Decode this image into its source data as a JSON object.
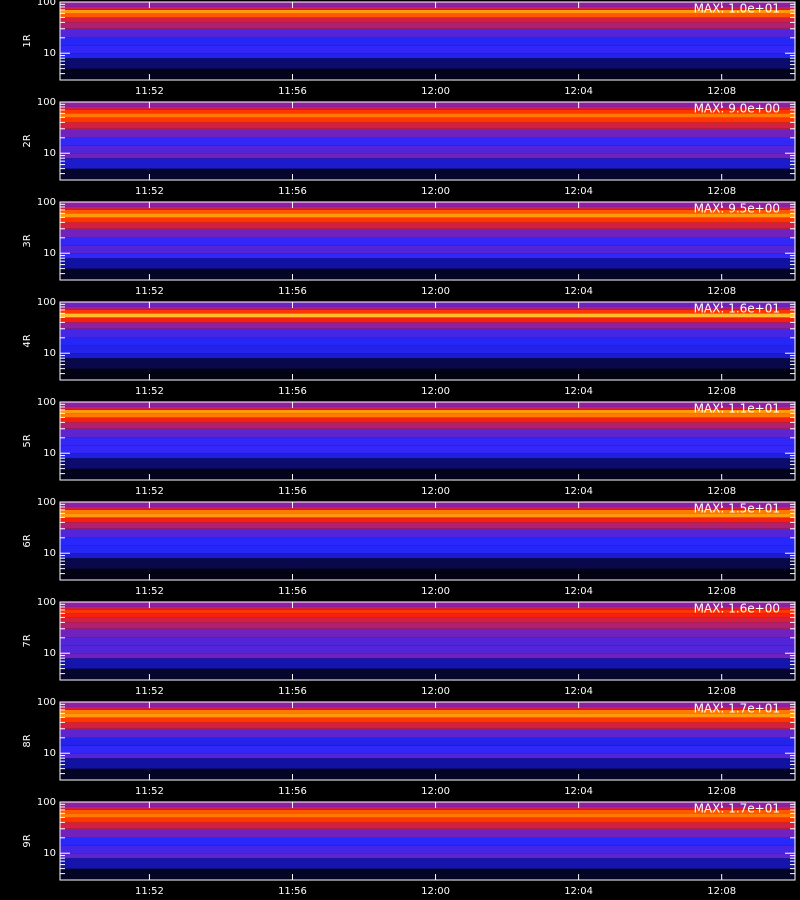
{
  "chart_data": [
    {
      "type": "heatmap",
      "y_label": "1R",
      "annotation": "MAX: 1.0e+01",
      "log_y": true,
      "xlim": [
        709.5,
        730.05
      ],
      "xticks": [
        {
          "value": 712,
          "label": "11:52"
        },
        {
          "value": 716,
          "label": "11:56"
        },
        {
          "value": 720,
          "label": "12:00"
        },
        {
          "value": 724,
          "label": "12:04"
        },
        {
          "value": 728,
          "label": "12:08"
        }
      ],
      "ylim": [
        3,
        100
      ],
      "yticks": [
        10,
        100
      ],
      "yminor_ticks": [
        4,
        5,
        6,
        7,
        8,
        9,
        20,
        30,
        40,
        50,
        60,
        70,
        80,
        90
      ],
      "band_edges": [
        3,
        5,
        8,
        10,
        14,
        20,
        30,
        40,
        50,
        60,
        70,
        80,
        100
      ],
      "values": [
        0.03,
        0.12,
        0.3,
        0.35,
        0.32,
        0.4,
        0.55,
        0.6,
        0.75,
        0.85,
        0.6,
        0.5
      ],
      "colormap": [
        "#000000",
        "#10109a",
        "#2828ff",
        "#9020a0",
        "#ff2000",
        "#ff9000",
        "#ffff70"
      ]
    },
    {
      "type": "heatmap",
      "y_label": "2R",
      "annotation": "MAX: 9.0e+00",
      "log_y": true,
      "xlim": [
        709.5,
        730.05
      ],
      "xticks": [
        {
          "value": 712,
          "label": "11:52"
        },
        {
          "value": 716,
          "label": "11:56"
        },
        {
          "value": 720,
          "label": "12:00"
        },
        {
          "value": 724,
          "label": "12:04"
        },
        {
          "value": 728,
          "label": "12:08"
        }
      ],
      "ylim": [
        3,
        100
      ],
      "yticks": [
        10,
        100
      ],
      "yminor_ticks": [
        4,
        5,
        6,
        7,
        8,
        9,
        20,
        30,
        40,
        50,
        60,
        70,
        80,
        90
      ],
      "band_edges": [
        3,
        5,
        8,
        10,
        14,
        20,
        30,
        40,
        50,
        60,
        70,
        80,
        100
      ],
      "values": [
        0.05,
        0.25,
        0.45,
        0.4,
        0.35,
        0.45,
        0.6,
        0.7,
        0.8,
        0.7,
        0.6,
        0.5
      ],
      "colormap": [
        "#000000",
        "#10109a",
        "#2828ff",
        "#9020a0",
        "#ff2000",
        "#ff9000",
        "#ffff70"
      ]
    },
    {
      "type": "heatmap",
      "y_label": "3R",
      "annotation": "MAX: 9.5e+00",
      "log_y": true,
      "xlim": [
        709.5,
        730.05
      ],
      "xticks": [
        {
          "value": 712,
          "label": "11:52"
        },
        {
          "value": 716,
          "label": "11:56"
        },
        {
          "value": 720,
          "label": "12:00"
        },
        {
          "value": 724,
          "label": "12:04"
        },
        {
          "value": 728,
          "label": "12:08"
        }
      ],
      "ylim": [
        3,
        100
      ],
      "yticks": [
        10,
        100
      ],
      "yminor_ticks": [
        4,
        5,
        6,
        7,
        8,
        9,
        20,
        30,
        40,
        50,
        60,
        70,
        80,
        90
      ],
      "band_edges": [
        3,
        5,
        8,
        10,
        14,
        20,
        30,
        40,
        50,
        60,
        70,
        80,
        100
      ],
      "values": [
        0.04,
        0.18,
        0.35,
        0.4,
        0.35,
        0.45,
        0.6,
        0.7,
        0.85,
        0.75,
        0.6,
        0.5
      ],
      "colormap": [
        "#000000",
        "#10109a",
        "#2828ff",
        "#9020a0",
        "#ff2000",
        "#ff9000",
        "#ffff70"
      ]
    },
    {
      "type": "heatmap",
      "y_label": "4R",
      "annotation": "MAX: 1.6e+01",
      "log_y": true,
      "xlim": [
        709.5,
        730.05
      ],
      "xticks": [
        {
          "value": 712,
          "label": "11:52"
        },
        {
          "value": 716,
          "label": "11:56"
        },
        {
          "value": 720,
          "label": "12:00"
        },
        {
          "value": 724,
          "label": "12:04"
        },
        {
          "value": 728,
          "label": "12:08"
        }
      ],
      "ylim": [
        3,
        100
      ],
      "yticks": [
        10,
        100
      ],
      "yminor_ticks": [
        4,
        5,
        6,
        7,
        8,
        9,
        20,
        30,
        40,
        50,
        60,
        70,
        80,
        90
      ],
      "band_edges": [
        3,
        5,
        8,
        10,
        14,
        20,
        30,
        40,
        50,
        60,
        70,
        80,
        100
      ],
      "values": [
        0.02,
        0.08,
        0.25,
        0.3,
        0.32,
        0.38,
        0.5,
        0.65,
        0.9,
        0.7,
        0.55,
        0.45
      ],
      "colormap": [
        "#000000",
        "#10109a",
        "#2828ff",
        "#9020a0",
        "#ff2000",
        "#ff9000",
        "#ffff70"
      ]
    },
    {
      "type": "heatmap",
      "y_label": "5R",
      "annotation": "MAX: 1.1e+01",
      "log_y": true,
      "xlim": [
        709.5,
        730.05
      ],
      "xticks": [
        {
          "value": 712,
          "label": "11:52"
        },
        {
          "value": 716,
          "label": "11:56"
        },
        {
          "value": 720,
          "label": "12:00"
        },
        {
          "value": 724,
          "label": "12:04"
        },
        {
          "value": 728,
          "label": "12:08"
        }
      ],
      "ylim": [
        3,
        100
      ],
      "yticks": [
        10,
        100
      ],
      "yminor_ticks": [
        4,
        5,
        6,
        7,
        8,
        9,
        20,
        30,
        40,
        50,
        60,
        70,
        80,
        90
      ],
      "band_edges": [
        3,
        5,
        8,
        10,
        14,
        20,
        30,
        40,
        50,
        60,
        70,
        80,
        100
      ],
      "values": [
        0.03,
        0.12,
        0.28,
        0.35,
        0.35,
        0.42,
        0.55,
        0.65,
        0.8,
        0.85,
        0.6,
        0.5
      ],
      "colormap": [
        "#000000",
        "#10109a",
        "#2828ff",
        "#9020a0",
        "#ff2000",
        "#ff9000",
        "#ffff70"
      ]
    },
    {
      "type": "heatmap",
      "y_label": "6R",
      "annotation": "MAX: 1.5e+01",
      "log_y": true,
      "xlim": [
        709.5,
        730.05
      ],
      "xticks": [
        {
          "value": 712,
          "label": "11:52"
        },
        {
          "value": 716,
          "label": "11:56"
        },
        {
          "value": 720,
          "label": "12:00"
        },
        {
          "value": 724,
          "label": "12:04"
        },
        {
          "value": 728,
          "label": "12:08"
        }
      ],
      "ylim": [
        3,
        100
      ],
      "yticks": [
        10,
        100
      ],
      "yminor_ticks": [
        4,
        5,
        6,
        7,
        8,
        9,
        20,
        30,
        40,
        50,
        60,
        70,
        80,
        90
      ],
      "band_edges": [
        3,
        5,
        8,
        10,
        14,
        20,
        30,
        40,
        50,
        60,
        70,
        80,
        100
      ],
      "values": [
        0.02,
        0.08,
        0.25,
        0.32,
        0.33,
        0.4,
        0.55,
        0.65,
        0.85,
        0.8,
        0.6,
        0.5
      ],
      "colormap": [
        "#000000",
        "#10109a",
        "#2828ff",
        "#9020a0",
        "#ff2000",
        "#ff9000",
        "#ffff70"
      ]
    },
    {
      "type": "heatmap",
      "y_label": "7R",
      "annotation": "MAX: 1.6e+00",
      "log_y": true,
      "xlim": [
        709.5,
        730.05
      ],
      "xticks": [
        {
          "value": 712,
          "label": "11:52"
        },
        {
          "value": 716,
          "label": "11:56"
        },
        {
          "value": 720,
          "label": "12:00"
        },
        {
          "value": 724,
          "label": "12:04"
        },
        {
          "value": 728,
          "label": "12:08"
        }
      ],
      "ylim": [
        3,
        100
      ],
      "yticks": [
        10,
        100
      ],
      "yminor_ticks": [
        4,
        5,
        6,
        7,
        8,
        9,
        20,
        30,
        40,
        50,
        60,
        70,
        80,
        90
      ],
      "band_edges": [
        3,
        5,
        8,
        10,
        14,
        20,
        30,
        40,
        50,
        60,
        70,
        80,
        100
      ],
      "values": [
        0.05,
        0.2,
        0.45,
        0.4,
        0.4,
        0.45,
        0.55,
        0.6,
        0.65,
        0.7,
        0.6,
        0.5
      ],
      "colormap": [
        "#000000",
        "#10109a",
        "#2828ff",
        "#9020a0",
        "#ff2000",
        "#ff9000",
        "#ffff70"
      ]
    },
    {
      "type": "heatmap",
      "y_label": "8R",
      "annotation": "MAX: 1.7e+01",
      "log_y": true,
      "xlim": [
        709.5,
        730.05
      ],
      "xticks": [
        {
          "value": 712,
          "label": "11:52"
        },
        {
          "value": 716,
          "label": "11:56"
        },
        {
          "value": 720,
          "label": "12:00"
        },
        {
          "value": 724,
          "label": "12:04"
        },
        {
          "value": 728,
          "label": "12:08"
        }
      ],
      "ylim": [
        3,
        100
      ],
      "yticks": [
        10,
        100
      ],
      "yminor_ticks": [
        4,
        5,
        6,
        7,
        8,
        9,
        20,
        30,
        40,
        50,
        60,
        70,
        80,
        90
      ],
      "band_edges": [
        3,
        5,
        8,
        10,
        14,
        20,
        30,
        40,
        50,
        60,
        70,
        80,
        100
      ],
      "values": [
        0.04,
        0.18,
        0.4,
        0.35,
        0.3,
        0.42,
        0.6,
        0.7,
        0.85,
        0.8,
        0.6,
        0.5
      ],
      "colormap": [
        "#000000",
        "#10109a",
        "#2828ff",
        "#9020a0",
        "#ff2000",
        "#ff9000",
        "#ffff70"
      ]
    },
    {
      "type": "heatmap",
      "y_label": "9R",
      "annotation": "MAX: 1.7e+01",
      "log_y": true,
      "xlim": [
        709.5,
        730.05
      ],
      "xticks": [
        {
          "value": 712,
          "label": "11:52"
        },
        {
          "value": 716,
          "label": "11:56"
        },
        {
          "value": 720,
          "label": "12:00"
        },
        {
          "value": 724,
          "label": "12:04"
        },
        {
          "value": 728,
          "label": "12:08"
        }
      ],
      "ylim": [
        3,
        100
      ],
      "yticks": [
        10,
        100
      ],
      "yminor_ticks": [
        4,
        5,
        6,
        7,
        8,
        9,
        20,
        30,
        40,
        50,
        60,
        70,
        80,
        90
      ],
      "band_edges": [
        3,
        5,
        8,
        10,
        14,
        20,
        30,
        40,
        50,
        60,
        70,
        80,
        100
      ],
      "values": [
        0.04,
        0.2,
        0.42,
        0.38,
        0.33,
        0.45,
        0.6,
        0.7,
        0.8,
        0.75,
        0.6,
        0.5
      ],
      "colormap": [
        "#000000",
        "#10109a",
        "#2828ff",
        "#9020a0",
        "#ff2000",
        "#ff9000",
        "#ffff70"
      ]
    }
  ]
}
